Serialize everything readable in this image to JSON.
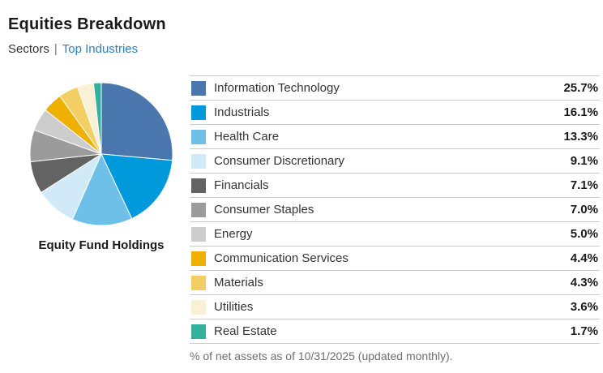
{
  "header": {
    "title": "Equities Breakdown"
  },
  "tabs": {
    "active_label": "Sectors",
    "separator": "|",
    "link_label": "Top Industries",
    "link_color": "#2e7fc2"
  },
  "chart_data": {
    "type": "pie",
    "title": "Equity Fund Holdings",
    "unit": "%",
    "start_angle_deg": -90,
    "direction": "clockwise",
    "legend_position": "right",
    "labels": [
      "Information Technology",
      "Industrials",
      "Health Care",
      "Consumer Discretionary",
      "Financials",
      "Consumer Staples",
      "Energy",
      "Communication Services",
      "Materials",
      "Utilities",
      "Real Estate"
    ],
    "values": [
      25.7,
      16.1,
      13.3,
      9.1,
      7.1,
      7.0,
      5.0,
      4.4,
      4.3,
      3.6,
      1.7
    ],
    "colors": [
      "#4a77ad",
      "#0099db",
      "#6fc0e9",
      "#d2eaf7",
      "#636363",
      "#9b9b9b",
      "#cdcdcd",
      "#f0b000",
      "#f3cf63",
      "#faf0d5",
      "#32b29c"
    ],
    "slice_separator_color": "#ffffff"
  },
  "footnote": "% of net assets as of 10/31/2025 (updated monthly)."
}
